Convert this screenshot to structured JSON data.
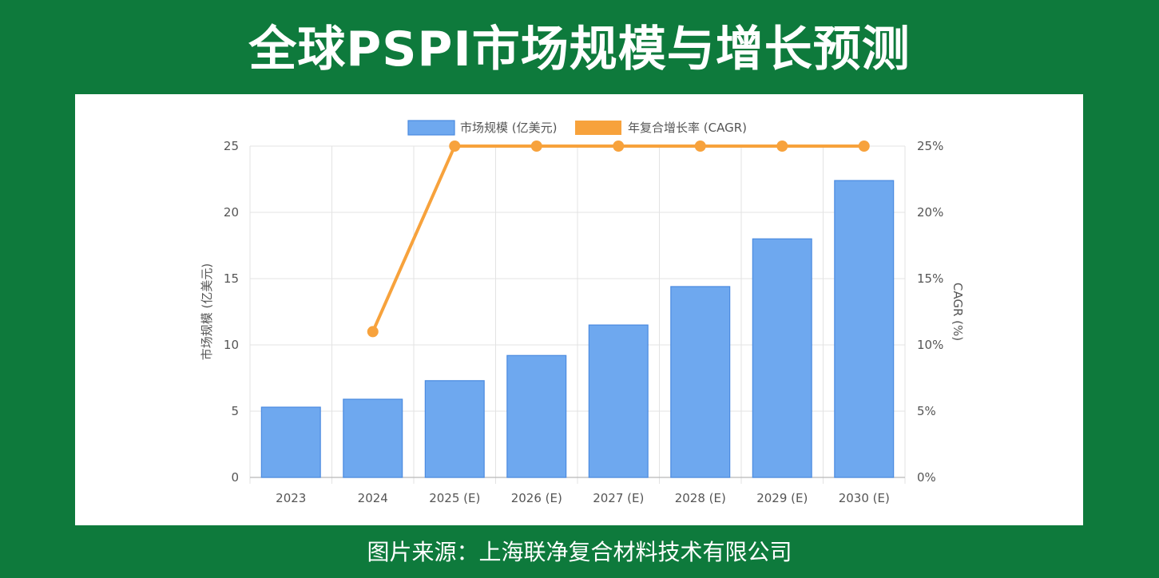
{
  "header": {
    "title": "全球PSPI市场规模与增长预测"
  },
  "footer": {
    "source": "图片来源：上海联净复合材料技术有限公司"
  },
  "chart_data": {
    "type": "bar",
    "categories": [
      "2023",
      "2024",
      "2025 (E)",
      "2026 (E)",
      "2027 (E)",
      "2028 (E)",
      "2029 (E)",
      "2030 (E)"
    ],
    "series": [
      {
        "name": "市场规模 (亿美元)",
        "type": "bar",
        "axis": "left",
        "color": "#6ea8ef",
        "values": [
          5.3,
          5.9,
          7.3,
          9.2,
          11.5,
          14.4,
          18.0,
          22.4
        ]
      },
      {
        "name": "年复合增长率 (CAGR)",
        "type": "line",
        "axis": "right",
        "color": "#f7a23c",
        "values": [
          null,
          11,
          25,
          25,
          25,
          25,
          25,
          25
        ]
      }
    ],
    "ylabel": "市场规模 (亿美元)",
    "y2label": "CAGR (%)",
    "ylim": [
      0,
      25
    ],
    "y2lim": [
      0,
      25
    ],
    "yticks": [
      "0",
      "5",
      "10",
      "15",
      "20",
      "25"
    ],
    "y2ticks": [
      "0%",
      "5%",
      "10%",
      "15%",
      "20%",
      "25%"
    ],
    "grid": true,
    "legend": "top-center"
  }
}
